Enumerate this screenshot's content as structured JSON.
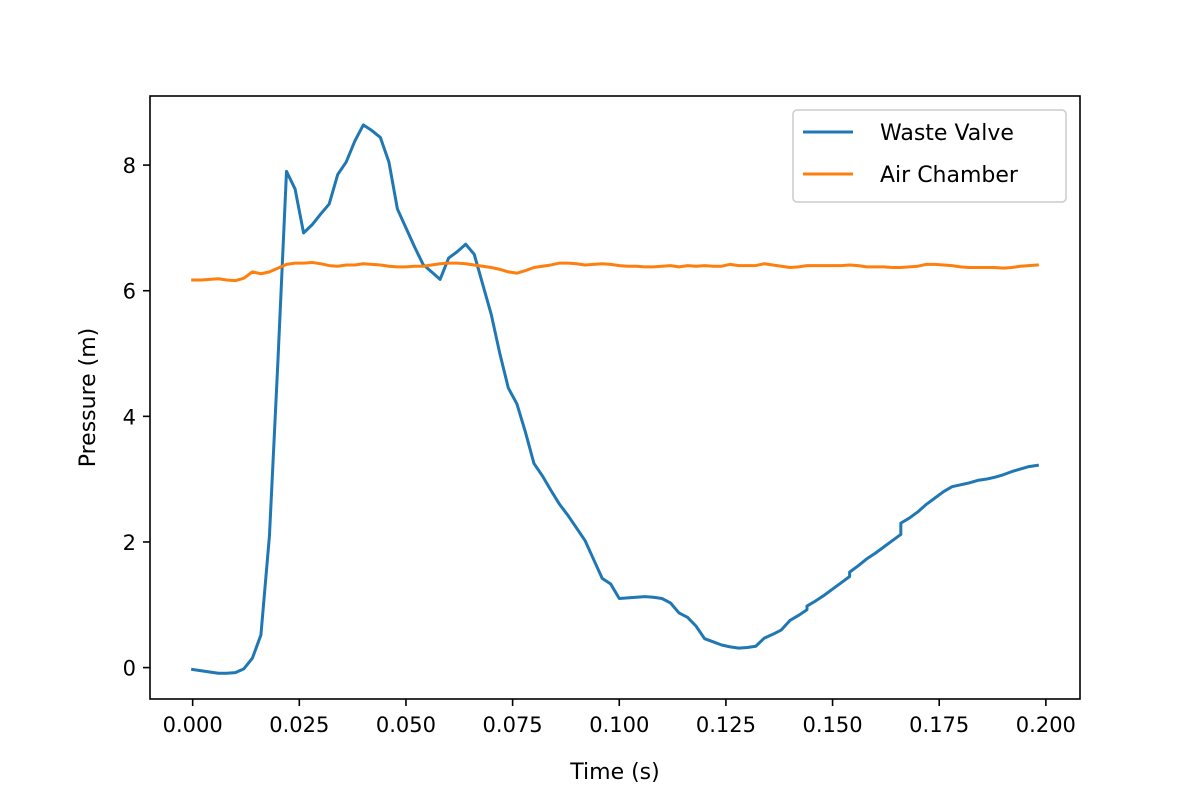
{
  "chart_data": {
    "type": "line",
    "title": "",
    "xlabel": "Time (s)",
    "ylabel": "Pressure (m)",
    "xlim": [
      -0.01,
      0.208
    ],
    "ylim": [
      -0.5,
      9.1
    ],
    "grid": false,
    "legend_position": "top-right",
    "x_ticks": [
      0.0,
      0.025,
      0.05,
      0.075,
      0.1,
      0.125,
      0.15,
      0.175,
      0.2
    ],
    "x_tick_labels": [
      "0.000",
      "0.025",
      "0.050",
      "0.075",
      "0.100",
      "0.125",
      "0.150",
      "0.175",
      "0.200"
    ],
    "y_ticks": [
      0,
      2,
      4,
      6,
      8
    ],
    "y_tick_labels": [
      "0",
      "2",
      "4",
      "6",
      "8"
    ],
    "series": [
      {
        "name": "Waste Valve",
        "color": "#1f77b4",
        "points": [
          [
            0.0,
            -0.03
          ],
          [
            0.002,
            -0.05
          ],
          [
            0.004,
            -0.07
          ],
          [
            0.006,
            -0.09
          ],
          [
            0.008,
            -0.09
          ],
          [
            0.01,
            -0.08
          ],
          [
            0.012,
            -0.02
          ],
          [
            0.014,
            0.15
          ],
          [
            0.016,
            0.52
          ],
          [
            0.018,
            2.1
          ],
          [
            0.02,
            4.9
          ],
          [
            0.022,
            7.9
          ],
          [
            0.024,
            7.62
          ],
          [
            0.026,
            6.92
          ],
          [
            0.028,
            7.05
          ],
          [
            0.03,
            7.22
          ],
          [
            0.032,
            7.38
          ],
          [
            0.034,
            7.85
          ],
          [
            0.036,
            8.05
          ],
          [
            0.038,
            8.38
          ],
          [
            0.04,
            8.64
          ],
          [
            0.042,
            8.55
          ],
          [
            0.044,
            8.44
          ],
          [
            0.046,
            8.05
          ],
          [
            0.048,
            7.3
          ],
          [
            0.05,
            7.0
          ],
          [
            0.052,
            6.7
          ],
          [
            0.054,
            6.42
          ],
          [
            0.056,
            6.3
          ],
          [
            0.058,
            6.18
          ],
          [
            0.06,
            6.52
          ],
          [
            0.062,
            6.62
          ],
          [
            0.064,
            6.74
          ],
          [
            0.066,
            6.58
          ],
          [
            0.068,
            6.1
          ],
          [
            0.07,
            5.62
          ],
          [
            0.072,
            5.0
          ],
          [
            0.074,
            4.45
          ],
          [
            0.076,
            4.2
          ],
          [
            0.078,
            3.75
          ],
          [
            0.08,
            3.25
          ],
          [
            0.082,
            3.05
          ],
          [
            0.084,
            2.82
          ],
          [
            0.086,
            2.6
          ],
          [
            0.088,
            2.42
          ],
          [
            0.09,
            2.22
          ],
          [
            0.092,
            2.02
          ],
          [
            0.094,
            1.72
          ],
          [
            0.096,
            1.42
          ],
          [
            0.098,
            1.33
          ],
          [
            0.1,
            1.1
          ],
          [
            0.102,
            1.11
          ],
          [
            0.104,
            1.12
          ],
          [
            0.106,
            1.13
          ],
          [
            0.108,
            1.12
          ],
          [
            0.11,
            1.1
          ],
          [
            0.112,
            1.03
          ],
          [
            0.114,
            0.87
          ],
          [
            0.116,
            0.8
          ],
          [
            0.118,
            0.66
          ],
          [
            0.12,
            0.46
          ],
          [
            0.122,
            0.41
          ],
          [
            0.124,
            0.36
          ],
          [
            0.126,
            0.33
          ],
          [
            0.128,
            0.31
          ],
          [
            0.13,
            0.32
          ],
          [
            0.132,
            0.34
          ],
          [
            0.134,
            0.47
          ],
          [
            0.136,
            0.53
          ],
          [
            0.138,
            0.6
          ],
          [
            0.14,
            0.75
          ],
          [
            0.142,
            0.83
          ],
          [
            0.144,
            0.92
          ],
          [
            0.144,
            0.98
          ],
          [
            0.146,
            1.06
          ],
          [
            0.148,
            1.15
          ],
          [
            0.15,
            1.25
          ],
          [
            0.152,
            1.35
          ],
          [
            0.154,
            1.45
          ],
          [
            0.154,
            1.52
          ],
          [
            0.156,
            1.62
          ],
          [
            0.158,
            1.73
          ],
          [
            0.16,
            1.82
          ],
          [
            0.162,
            1.92
          ],
          [
            0.164,
            2.02
          ],
          [
            0.166,
            2.12
          ],
          [
            0.166,
            2.3
          ],
          [
            0.168,
            2.38
          ],
          [
            0.17,
            2.48
          ],
          [
            0.172,
            2.6
          ],
          [
            0.174,
            2.7
          ],
          [
            0.176,
            2.8
          ],
          [
            0.178,
            2.88
          ],
          [
            0.18,
            2.91
          ],
          [
            0.182,
            2.94
          ],
          [
            0.184,
            2.98
          ],
          [
            0.186,
            3.0
          ],
          [
            0.188,
            3.03
          ],
          [
            0.19,
            3.07
          ],
          [
            0.192,
            3.12
          ],
          [
            0.194,
            3.16
          ],
          [
            0.196,
            3.2
          ],
          [
            0.198,
            3.22
          ]
        ]
      },
      {
        "name": "Air Chamber",
        "color": "#ff7f0e",
        "points": [
          [
            0.0,
            6.17
          ],
          [
            0.002,
            6.17
          ],
          [
            0.004,
            6.18
          ],
          [
            0.006,
            6.19
          ],
          [
            0.008,
            6.17
          ],
          [
            0.01,
            6.16
          ],
          [
            0.012,
            6.2
          ],
          [
            0.014,
            6.3
          ],
          [
            0.016,
            6.27
          ],
          [
            0.018,
            6.3
          ],
          [
            0.02,
            6.36
          ],
          [
            0.022,
            6.42
          ],
          [
            0.024,
            6.44
          ],
          [
            0.026,
            6.44
          ],
          [
            0.028,
            6.45
          ],
          [
            0.03,
            6.43
          ],
          [
            0.032,
            6.4
          ],
          [
            0.034,
            6.39
          ],
          [
            0.036,
            6.41
          ],
          [
            0.038,
            6.41
          ],
          [
            0.04,
            6.43
          ],
          [
            0.042,
            6.42
          ],
          [
            0.044,
            6.41
          ],
          [
            0.046,
            6.39
          ],
          [
            0.048,
            6.38
          ],
          [
            0.05,
            6.38
          ],
          [
            0.052,
            6.39
          ],
          [
            0.054,
            6.39
          ],
          [
            0.056,
            6.41
          ],
          [
            0.058,
            6.43
          ],
          [
            0.06,
            6.44
          ],
          [
            0.062,
            6.44
          ],
          [
            0.064,
            6.43
          ],
          [
            0.066,
            6.41
          ],
          [
            0.068,
            6.39
          ],
          [
            0.07,
            6.37
          ],
          [
            0.072,
            6.34
          ],
          [
            0.074,
            6.3
          ],
          [
            0.076,
            6.28
          ],
          [
            0.078,
            6.32
          ],
          [
            0.08,
            6.37
          ],
          [
            0.082,
            6.39
          ],
          [
            0.084,
            6.41
          ],
          [
            0.086,
            6.44
          ],
          [
            0.088,
            6.44
          ],
          [
            0.09,
            6.43
          ],
          [
            0.092,
            6.41
          ],
          [
            0.094,
            6.42
          ],
          [
            0.096,
            6.43
          ],
          [
            0.098,
            6.42
          ],
          [
            0.1,
            6.4
          ],
          [
            0.102,
            6.39
          ],
          [
            0.104,
            6.39
          ],
          [
            0.106,
            6.38
          ],
          [
            0.108,
            6.38
          ],
          [
            0.11,
            6.39
          ],
          [
            0.112,
            6.4
          ],
          [
            0.114,
            6.38
          ],
          [
            0.116,
            6.4
          ],
          [
            0.118,
            6.39
          ],
          [
            0.12,
            6.4
          ],
          [
            0.122,
            6.39
          ],
          [
            0.124,
            6.39
          ],
          [
            0.126,
            6.42
          ],
          [
            0.128,
            6.4
          ],
          [
            0.13,
            6.4
          ],
          [
            0.132,
            6.4
          ],
          [
            0.134,
            6.43
          ],
          [
            0.136,
            6.41
          ],
          [
            0.138,
            6.39
          ],
          [
            0.14,
            6.37
          ],
          [
            0.142,
            6.38
          ],
          [
            0.144,
            6.4
          ],
          [
            0.146,
            6.4
          ],
          [
            0.148,
            6.4
          ],
          [
            0.15,
            6.4
          ],
          [
            0.152,
            6.4
          ],
          [
            0.154,
            6.41
          ],
          [
            0.156,
            6.4
          ],
          [
            0.158,
            6.38
          ],
          [
            0.16,
            6.38
          ],
          [
            0.162,
            6.38
          ],
          [
            0.164,
            6.37
          ],
          [
            0.166,
            6.37
          ],
          [
            0.168,
            6.38
          ],
          [
            0.17,
            6.39
          ],
          [
            0.172,
            6.42
          ],
          [
            0.174,
            6.42
          ],
          [
            0.176,
            6.41
          ],
          [
            0.178,
            6.4
          ],
          [
            0.18,
            6.38
          ],
          [
            0.182,
            6.37
          ],
          [
            0.184,
            6.37
          ],
          [
            0.186,
            6.37
          ],
          [
            0.188,
            6.37
          ],
          [
            0.19,
            6.36
          ],
          [
            0.192,
            6.37
          ],
          [
            0.194,
            6.39
          ],
          [
            0.196,
            6.4
          ],
          [
            0.198,
            6.41
          ]
        ]
      }
    ]
  }
}
